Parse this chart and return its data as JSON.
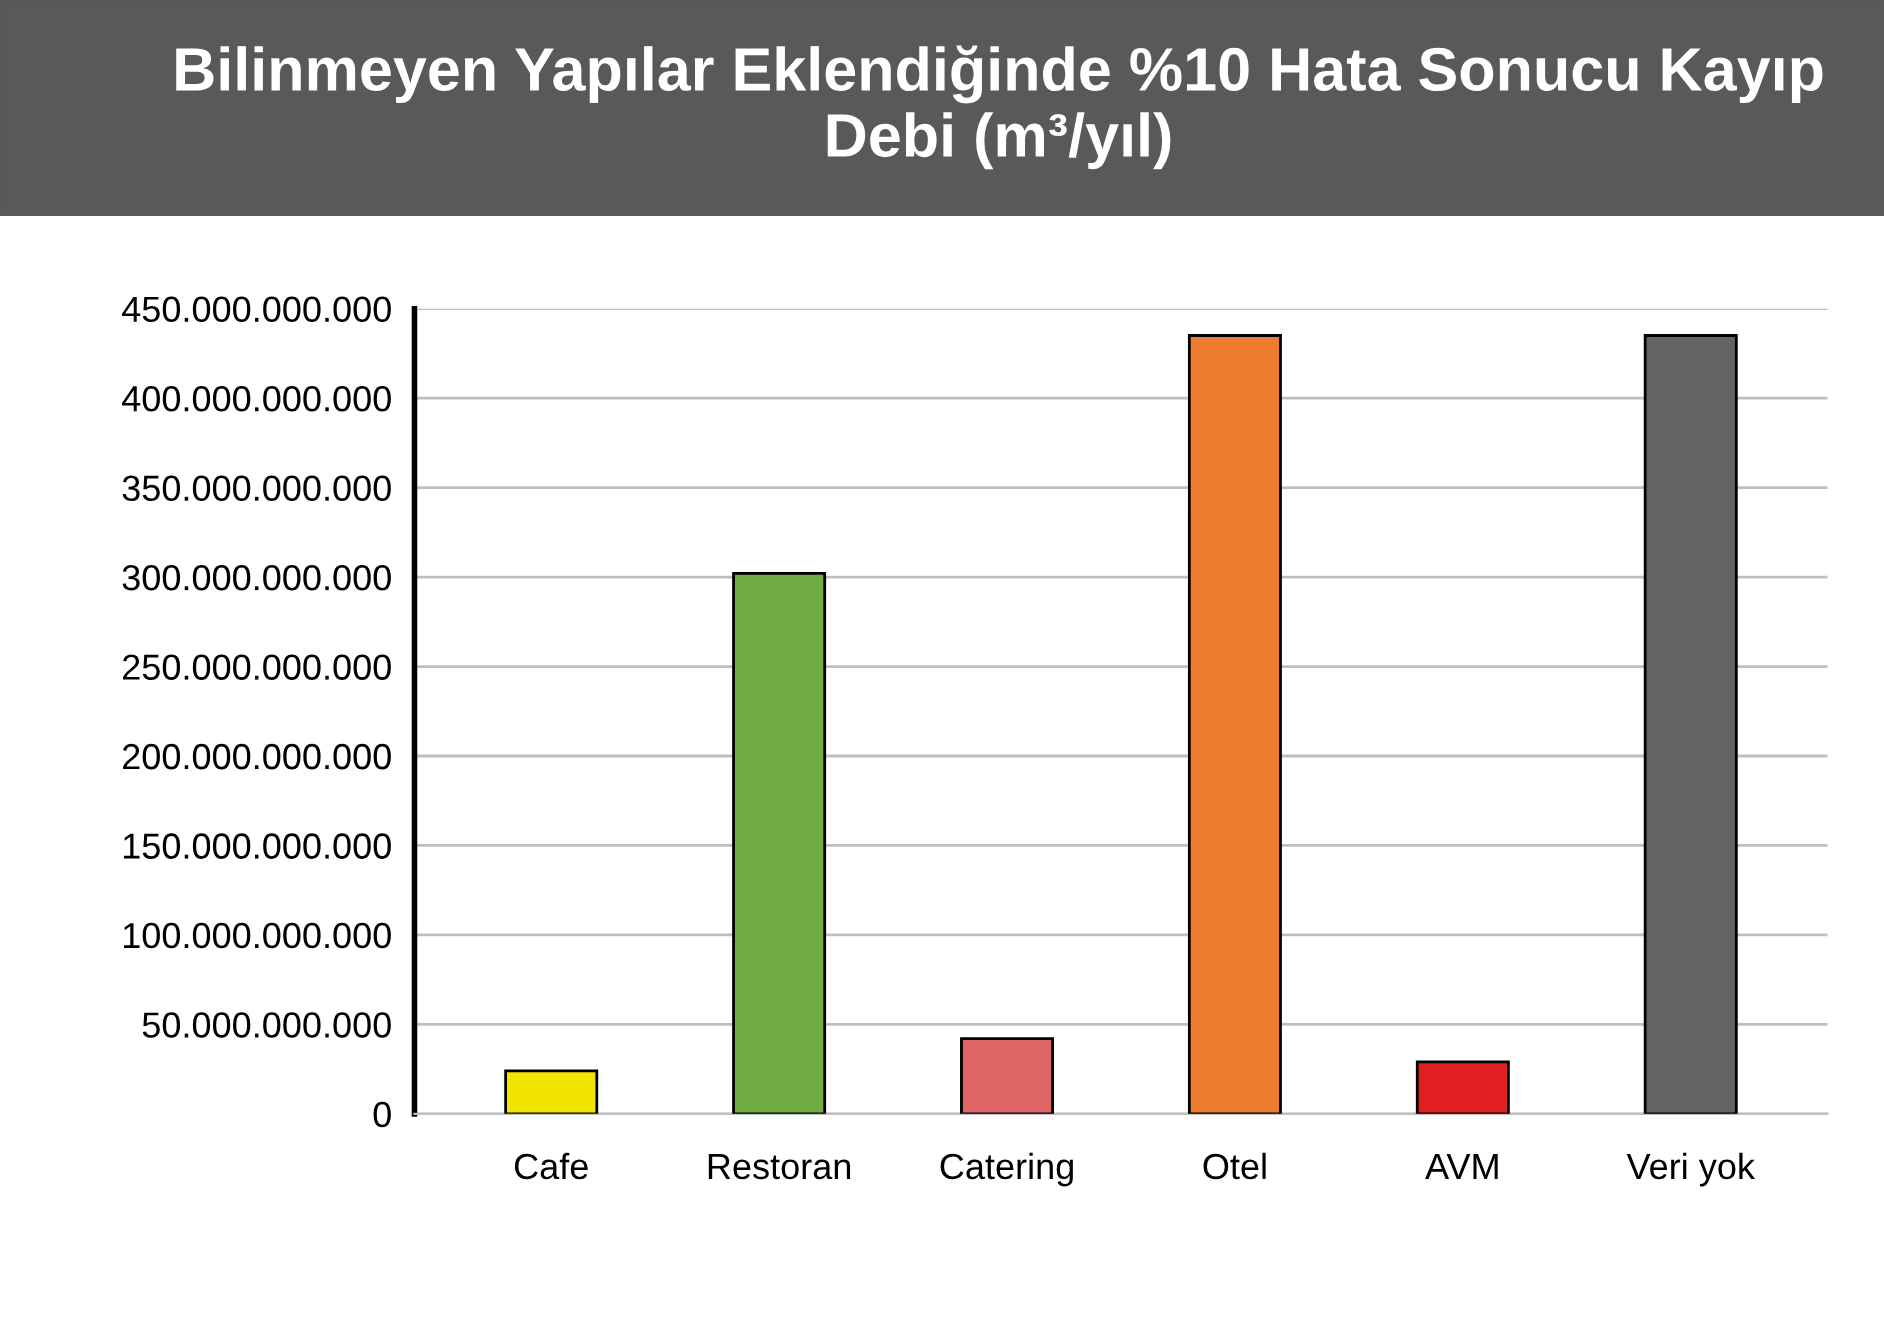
{
  "chart_data": {
    "type": "bar",
    "title": "Bilinmeyen Yapılar Eklendiğinde %10 Hata Sonucu Kayıp Debi (m³/yıl)",
    "categories": [
      "Cafe",
      "Restoran",
      "Catering",
      "Otel",
      "AVM",
      "Veri yok"
    ],
    "values": [
      24000000000,
      302000000000,
      42000000000,
      435000000000,
      29000000000,
      435000000000
    ],
    "colors": [
      "#f2e600",
      "#70ad47",
      "#e06666",
      "#ed7d31",
      "#e02020",
      "#636363"
    ],
    "ylim": [
      0,
      450000000000
    ],
    "yticks": [
      {
        "value": 0,
        "label": "0"
      },
      {
        "value": 50000000000,
        "label": "50.000.000.000"
      },
      {
        "value": 100000000000,
        "label": "100.000.000.000"
      },
      {
        "value": 150000000000,
        "label": "150.000.000.000"
      },
      {
        "value": 200000000000,
        "label": "200.000.000.000"
      },
      {
        "value": 250000000000,
        "label": "250.000.000.000"
      },
      {
        "value": 300000000000,
        "label": "300.000.000.000"
      },
      {
        "value": 350000000000,
        "label": "350.000.000.000"
      },
      {
        "value": 400000000000,
        "label": "400.000.000.000"
      },
      {
        "value": 450000000000,
        "label": "450.000.000.000"
      }
    ],
    "grid": "y"
  }
}
